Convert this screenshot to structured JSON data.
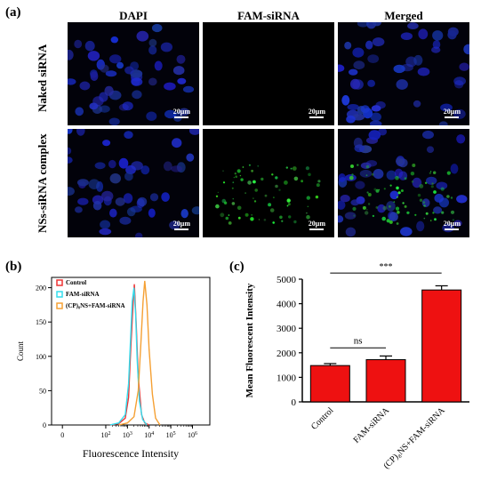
{
  "figure": {
    "panel_a": {
      "label": "(a)",
      "columns": [
        "DAPI",
        "FAM-siRNA",
        "Merged"
      ],
      "rows": [
        "Naked siRNA",
        "NSs-siRNA complex"
      ],
      "scale_bar": "20μm"
    },
    "panel_b": {
      "label": "(b)"
    },
    "panel_c": {
      "label": "(c)"
    }
  },
  "chart_data": [
    {
      "type": "line",
      "chart": "flow-cytometry-histogram",
      "xlabel": "Fluorescence Intensity",
      "ylabel": "Count",
      "x_scale": "log",
      "x_tick_labels": [
        "0",
        "10^2",
        "10^3",
        "10^4",
        "10^5",
        "10^6"
      ],
      "x_ticks": [
        0,
        2,
        3,
        4,
        5,
        6
      ],
      "y_ticks": [
        0,
        50,
        100,
        150,
        200
      ],
      "ylim": [
        0,
        215
      ],
      "legend_position": "top-left",
      "series": [
        {
          "name": "Control",
          "color": "#ee3333",
          "x": [
            2.2,
            2.6,
            2.9,
            3.05,
            3.15,
            3.25,
            3.32,
            3.4,
            3.5,
            3.65,
            3.8,
            4.0
          ],
          "y": [
            0,
            2,
            10,
            40,
            110,
            170,
            205,
            150,
            70,
            15,
            3,
            0
          ]
        },
        {
          "name": "FAM-siRNA",
          "color": "#33ddee",
          "x": [
            2.2,
            2.6,
            2.9,
            3.05,
            3.15,
            3.22,
            3.3,
            3.38,
            3.45,
            3.55,
            3.7,
            3.9
          ],
          "y": [
            0,
            3,
            15,
            60,
            130,
            180,
            200,
            160,
            95,
            35,
            8,
            0
          ]
        },
        {
          "name": "(CP)₈NS+FAM-siRNA",
          "color": "#f5a033",
          "x": [
            2.6,
            3.0,
            3.3,
            3.5,
            3.62,
            3.72,
            3.8,
            3.9,
            4.0,
            4.15,
            4.3,
            4.5
          ],
          "y": [
            0,
            3,
            12,
            50,
            120,
            180,
            210,
            175,
            110,
            45,
            10,
            0
          ]
        }
      ]
    },
    {
      "type": "bar",
      "categories": [
        "Control",
        "FAM-siRNA",
        "(CP)₈NS+FAM-siRNA"
      ],
      "values": [
        1480,
        1720,
        4560
      ],
      "errors": [
        80,
        150,
        170
      ],
      "ylabel": "Mean Fluorescent Intensity",
      "ylim": [
        0,
        5000
      ],
      "y_ticks": [
        0,
        1000,
        2000,
        3000,
        4000,
        5000
      ],
      "bar_color": "#ee1111",
      "annotations": [
        {
          "text": "ns",
          "between": [
            "Control",
            "FAM-siRNA"
          ]
        },
        {
          "text": "***",
          "between": [
            "Control",
            "(CP)₈NS+FAM-siRNA"
          ]
        }
      ]
    }
  ]
}
